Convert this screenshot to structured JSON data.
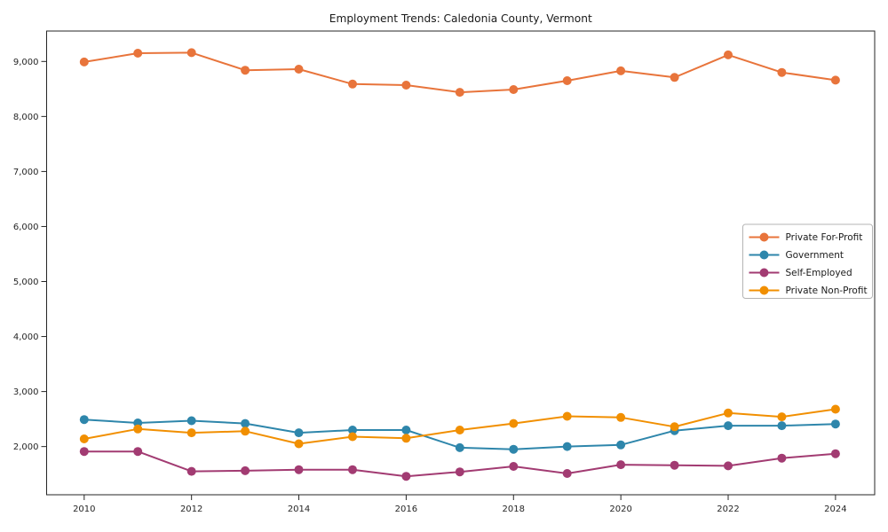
{
  "chart_data": {
    "type": "line",
    "title": "Employment Trends: Caledonia County, Vermont",
    "xlabel": "",
    "ylabel": "",
    "x": [
      2010,
      2011,
      2012,
      2013,
      2014,
      2015,
      2016,
      2017,
      2018,
      2019,
      2020,
      2021,
      2022,
      2023,
      2024
    ],
    "series": [
      {
        "name": "Private For-Profit",
        "color": "#e8743b",
        "values": [
          8990,
          9150,
          9160,
          8840,
          8860,
          8590,
          8570,
          8440,
          8490,
          8650,
          8830,
          8710,
          9120,
          8800,
          8660
        ]
      },
      {
        "name": "Government",
        "color": "#2e86ab",
        "values": [
          2490,
          2430,
          2470,
          2420,
          2250,
          2300,
          2300,
          1980,
          1950,
          2000,
          2030,
          2290,
          2380,
          2380,
          2410
        ]
      },
      {
        "name": "Self-Employed",
        "color": "#a23b72",
        "values": [
          1910,
          1910,
          1550,
          1560,
          1580,
          1580,
          1460,
          1540,
          1640,
          1510,
          1670,
          1660,
          1650,
          1790,
          1870
        ]
      },
      {
        "name": "Private Non-Profit",
        "color": "#f18f01",
        "values": [
          2140,
          2320,
          2250,
          2280,
          2050,
          2180,
          2150,
          2300,
          2420,
          2550,
          2530,
          2360,
          2610,
          2540,
          2680
        ]
      }
    ],
    "xlim": [
      2009.3,
      2024.73
    ],
    "ylim": [
      1124,
      9553
    ],
    "xticks": [
      2010,
      2012,
      2014,
      2016,
      2018,
      2020,
      2022,
      2024
    ],
    "xtick_labels": [
      "2010",
      "2012",
      "2014",
      "2016",
      "2018",
      "2020",
      "2022",
      "2024"
    ],
    "yticks": [
      2000,
      3000,
      4000,
      5000,
      6000,
      7000,
      8000,
      9000
    ],
    "ytick_labels": [
      "2,000",
      "3,000",
      "4,000",
      "5,000",
      "6,000",
      "7,000",
      "8,000",
      "9,000"
    ],
    "grid": false,
    "legend": {
      "position": "center-right",
      "entries": [
        "Private For-Profit",
        "Government",
        "Self-Employed",
        "Private Non-Profit"
      ]
    },
    "colors": {
      "axis": "#262626",
      "tick_label": "#262626",
      "title": "#1a1a1a",
      "legend_border": "#b4b4b4",
      "background": "#ffffff"
    }
  }
}
